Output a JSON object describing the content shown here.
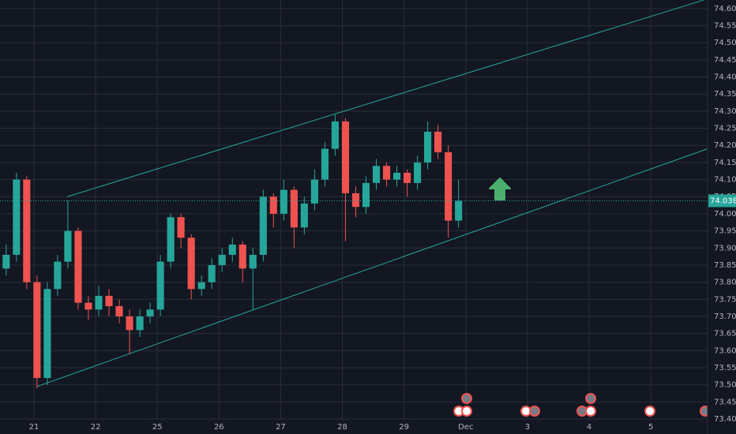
{
  "chart_data": {
    "type": "candlestick",
    "up_color": "#26a69a",
    "down_color": "#ef5350",
    "trendline_color": "#26a69a",
    "grid": true,
    "xlim": [
      -0.55,
      10.92
    ],
    "ylim": [
      73.4,
      74.625
    ],
    "xticks": [
      {
        "value": 0,
        "label": "21"
      },
      {
        "value": 1,
        "label": "22"
      },
      {
        "value": 2,
        "label": "25"
      },
      {
        "value": 3,
        "label": "26"
      },
      {
        "value": 4,
        "label": "27"
      },
      {
        "value": 5,
        "label": "28"
      },
      {
        "value": 6,
        "label": "29"
      },
      {
        "value": 7,
        "label": "Dec"
      },
      {
        "value": 8,
        "label": "3"
      },
      {
        "value": 9,
        "label": "4"
      },
      {
        "value": 10,
        "label": "5"
      }
    ],
    "yticks": [
      {
        "value": 73.4,
        "label": "73.400"
      },
      {
        "value": 73.45,
        "label": "73.450"
      },
      {
        "value": 73.5,
        "label": "73.500"
      },
      {
        "value": 73.55,
        "label": "73.550"
      },
      {
        "value": 73.6,
        "label": "73.600"
      },
      {
        "value": 73.65,
        "label": "73.650"
      },
      {
        "value": 73.7,
        "label": "73.700"
      },
      {
        "value": 73.75,
        "label": "73.750"
      },
      {
        "value": 73.8,
        "label": "73.800"
      },
      {
        "value": 73.85,
        "label": "73.850"
      },
      {
        "value": 73.9,
        "label": "73.900"
      },
      {
        "value": 73.95,
        "label": "73.950"
      },
      {
        "value": 74.0,
        "label": "74.000"
      },
      {
        "value": 74.05,
        "label": "74.050"
      },
      {
        "value": 74.1,
        "label": "74.100"
      },
      {
        "value": 74.15,
        "label": "74.150"
      },
      {
        "value": 74.2,
        "label": "74.200"
      },
      {
        "value": 74.25,
        "label": "74.250"
      },
      {
        "value": 74.3,
        "label": "74.300"
      },
      {
        "value": 74.35,
        "label": "74.350"
      },
      {
        "value": 74.4,
        "label": "74.400"
      },
      {
        "value": 74.45,
        "label": "74.450"
      },
      {
        "value": 74.5,
        "label": "74.500"
      },
      {
        "value": 74.55,
        "label": "74.550"
      },
      {
        "value": 74.6,
        "label": "74.600"
      }
    ],
    "x": [
      -0.45,
      -0.283,
      -0.117,
      0.05,
      0.217,
      0.383,
      0.55,
      0.717,
      0.883,
      1.05,
      1.217,
      1.383,
      1.55,
      1.717,
      1.883,
      2.05,
      2.217,
      2.383,
      2.55,
      2.717,
      2.883,
      3.05,
      3.217,
      3.383,
      3.55,
      3.717,
      3.883,
      4.05,
      4.217,
      4.383,
      4.55,
      4.717,
      4.883,
      5.05,
      5.217,
      5.383,
      5.55,
      5.717,
      5.883,
      6.05,
      6.217,
      6.383,
      6.55,
      6.717,
      6.883
    ],
    "open": [
      73.84,
      73.88,
      74.1,
      73.8,
      73.52,
      73.78,
      73.86,
      73.95,
      73.74,
      73.72,
      73.76,
      73.73,
      73.7,
      73.66,
      73.7,
      73.72,
      73.86,
      73.99,
      73.93,
      73.78,
      73.8,
      73.85,
      73.88,
      73.91,
      73.84,
      73.88,
      74.05,
      74.0,
      74.07,
      73.96,
      74.03,
      74.1,
      74.19,
      74.27,
      74.06,
      74.02,
      74.09,
      74.14,
      74.1,
      74.12,
      74.09,
      74.15,
      74.24,
      74.18,
      73.98
    ],
    "high": [
      73.91,
      74.12,
      74.11,
      73.82,
      73.8,
      73.88,
      74.04,
      73.96,
      73.76,
      73.79,
      73.78,
      73.75,
      73.72,
      73.72,
      73.74,
      73.88,
      74.0,
      74.0,
      73.94,
      73.82,
      73.87,
      73.9,
      73.93,
      73.92,
      73.9,
      74.07,
      74.06,
      74.1,
      74.08,
      74.05,
      74.13,
      74.21,
      74.29,
      74.28,
      74.08,
      74.11,
      74.16,
      74.15,
      74.14,
      74.13,
      74.17,
      74.27,
      74.26,
      74.2,
      74.1
    ],
    "low": [
      73.82,
      73.86,
      73.78,
      73.49,
      73.5,
      73.76,
      73.84,
      73.72,
      73.69,
      73.7,
      73.7,
      73.68,
      73.59,
      73.64,
      73.68,
      73.7,
      73.84,
      73.9,
      73.75,
      73.76,
      73.78,
      73.83,
      73.86,
      73.8,
      73.72,
      73.86,
      73.96,
      73.98,
      73.9,
      73.94,
      74.01,
      74.08,
      74.17,
      73.92,
      73.99,
      74.0,
      74.07,
      74.08,
      74.08,
      74.05,
      74.07,
      74.13,
      74.16,
      73.93,
      73.96
    ],
    "close": [
      73.88,
      74.1,
      73.8,
      73.52,
      73.78,
      73.86,
      73.95,
      73.74,
      73.72,
      73.76,
      73.73,
      73.7,
      73.66,
      73.7,
      73.72,
      73.86,
      73.99,
      73.93,
      73.78,
      73.8,
      73.85,
      73.88,
      73.91,
      73.84,
      73.88,
      74.05,
      74.0,
      74.07,
      73.96,
      74.03,
      74.1,
      74.19,
      74.27,
      74.06,
      74.02,
      74.09,
      74.14,
      74.1,
      74.12,
      74.09,
      74.15,
      74.24,
      74.18,
      73.98,
      74.038
    ],
    "last_price": {
      "value": 74.038,
      "label": "74.038"
    },
    "trendlines": [
      {
        "x": [
          0.54,
          10.86
        ],
        "y": [
          74.05,
          74.625
        ]
      },
      {
        "x": [
          0.05,
          10.92
        ],
        "y": [
          73.495,
          74.19
        ]
      }
    ]
  }
}
